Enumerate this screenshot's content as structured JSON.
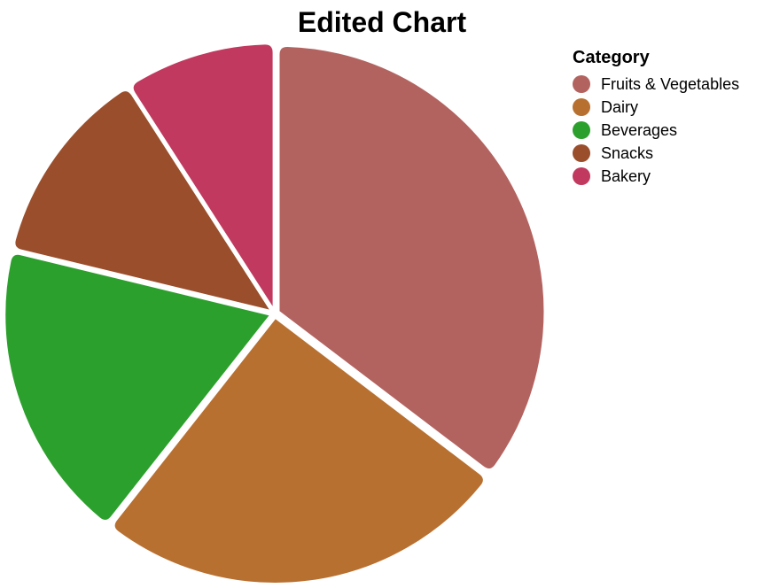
{
  "chart_data": {
    "type": "pie",
    "title": "Edited Chart",
    "legend_title": "Category",
    "legend_position": "top-right",
    "categories": [
      "Fruits & Vegetables",
      "Dairy",
      "Beverages",
      "Snacks",
      "Bakery"
    ],
    "values": [
      35,
      25,
      18,
      12,
      9
    ],
    "colors": [
      "#b3635f",
      "#b87030",
      "#2ca02c",
      "#9a4e2c",
      "#c1395e"
    ]
  }
}
